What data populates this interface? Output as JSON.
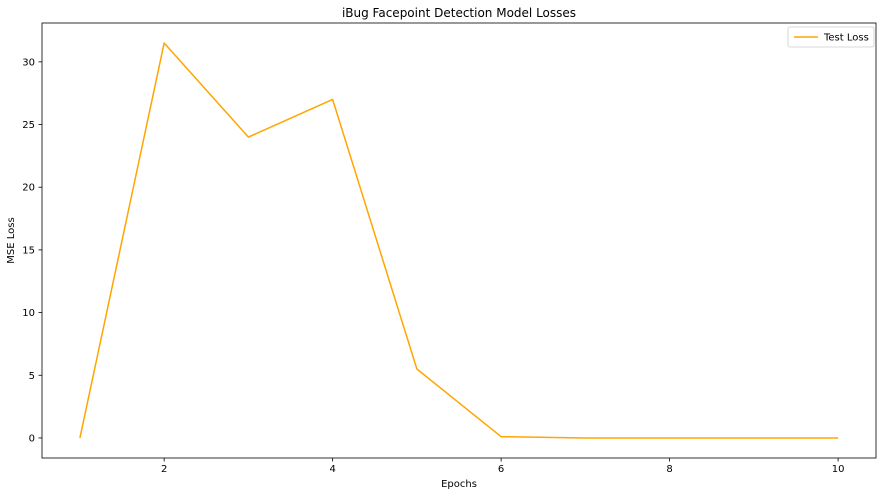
{
  "chart_data": {
    "type": "line",
    "title": "iBug Facepoint Detection Model Losses",
    "xlabel": "Epochs",
    "ylabel": "MSE Loss",
    "x": [
      1,
      2,
      3,
      4,
      5,
      6,
      7,
      8,
      9,
      10
    ],
    "series": [
      {
        "name": "Test Loss",
        "color": "#FFA500",
        "values": [
          0.0,
          31.5,
          24.0,
          27.0,
          5.5,
          0.1,
          0.0,
          0.0,
          0.0,
          0.0
        ]
      }
    ],
    "xlim": [
      0.55,
      10.45
    ],
    "ylim": [
      -1.6,
      33.1
    ],
    "x_ticks": [
      2,
      4,
      6,
      8,
      10
    ],
    "x_tick_labels": [
      "2",
      "4",
      "6",
      "8",
      "10"
    ],
    "y_ticks": [
      0,
      5,
      10,
      15,
      20,
      25,
      30
    ],
    "y_tick_labels": [
      "0",
      "5",
      "10",
      "15",
      "20",
      "25",
      "30"
    ],
    "grid": false,
    "legend_position": "top-right"
  }
}
